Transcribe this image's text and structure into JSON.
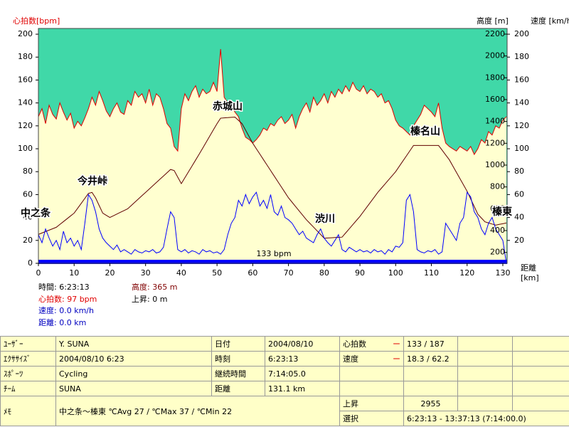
{
  "chart_data": {
    "type": "line",
    "y_label": "心拍数[bpm]",
    "y2_label": "高度 [m]",
    "y3_label": "速度 [km/h]",
    "x_label": "距離 [km]",
    "background_color": "#40d8a8",
    "xlim": [
      0,
      131.2
    ],
    "xticks": [
      0,
      10,
      20,
      30,
      40,
      50,
      60,
      70,
      80,
      90,
      100,
      110,
      120,
      130
    ],
    "ylim": [
      0,
      205
    ],
    "yticks": [
      0,
      20,
      40,
      60,
      80,
      100,
      120,
      140,
      160,
      180,
      200
    ],
    "y2lim": [
      100,
      2252
    ],
    "y2ticks": [
      200,
      400,
      600,
      800,
      1000,
      1200,
      1400,
      1600,
      1800,
      2000,
      2200
    ],
    "y3lim": [
      0,
      205
    ],
    "y3ticks": [
      20,
      40,
      60,
      80,
      100,
      120,
      140,
      160,
      180,
      200
    ],
    "x": [
      0,
      1,
      2,
      3,
      4,
      5,
      6,
      7,
      8,
      9,
      10,
      11,
      12,
      13,
      14,
      15,
      16,
      17,
      18,
      19,
      20,
      21,
      22,
      23,
      24,
      25,
      26,
      27,
      28,
      29,
      30,
      31,
      32,
      33,
      34,
      35,
      36,
      37,
      38,
      39,
      40,
      41,
      42,
      43,
      44,
      45,
      46,
      47,
      48,
      49,
      50,
      51,
      52,
      53,
      54,
      55,
      56,
      57,
      58,
      59,
      60,
      61,
      62,
      63,
      64,
      65,
      66,
      67,
      68,
      69,
      70,
      71,
      72,
      73,
      74,
      75,
      76,
      77,
      78,
      79,
      80,
      81,
      82,
      83,
      84,
      85,
      86,
      87,
      88,
      89,
      90,
      91,
      92,
      93,
      94,
      95,
      96,
      97,
      98,
      99,
      100,
      101,
      102,
      103,
      104,
      105,
      106,
      107,
      108,
      109,
      110,
      111,
      112,
      113,
      114,
      115,
      116,
      117,
      118,
      119,
      120,
      121,
      122,
      123,
      124,
      125,
      126,
      127,
      128,
      129,
      130,
      131
    ],
    "series": [
      {
        "name": "心拍数",
        "color": "#e00000",
        "fill": "#ffffd0",
        "axis": "y",
        "values": [
          128,
          135,
          122,
          138,
          130,
          126,
          140,
          132,
          125,
          131,
          118,
          124,
          120,
          127,
          135,
          145,
          138,
          150,
          142,
          133,
          128,
          135,
          140,
          132,
          130,
          142,
          138,
          150,
          145,
          148,
          140,
          152,
          138,
          148,
          145,
          135,
          122,
          118,
          102,
          98,
          135,
          148,
          142,
          150,
          155,
          145,
          152,
          148,
          150,
          158,
          150,
          187,
          145,
          140,
          138,
          132,
          128,
          118,
          110,
          108,
          105,
          108,
          112,
          118,
          116,
          122,
          120,
          125,
          128,
          122,
          125,
          130,
          118,
          128,
          135,
          140,
          132,
          145,
          138,
          142,
          148,
          140,
          150,
          145,
          152,
          148,
          155,
          150,
          158,
          152,
          150,
          155,
          148,
          152,
          150,
          145,
          148,
          140,
          142,
          135,
          125,
          120,
          118,
          115,
          112,
          120,
          125,
          130,
          138,
          135,
          132,
          128,
          140,
          118,
          105,
          102,
          100,
          98,
          102,
          100,
          98,
          102,
          95,
          100,
          108,
          105,
          115,
          112,
          120,
          118,
          125,
          128
        ]
      },
      {
        "name": "高度",
        "color": "#600000",
        "axis": "y2",
        "values": [
          365,
          378,
          391,
          404,
          417,
          430,
          456,
          482,
          508,
          534,
          560,
          605,
          650,
          695,
          740,
          750,
          700,
          630,
          560,
          540,
          520,
          536,
          552,
          568,
          584,
          600,
          630,
          660,
          690,
          720,
          750,
          780,
          810,
          840,
          870,
          900,
          930,
          960,
          950,
          890,
          830,
          884,
          938,
          992,
          1046,
          1100,
          1156,
          1212,
          1268,
          1324,
          1380,
          1430,
          1433,
          1435,
          1438,
          1440,
          1410,
          1380,
          1320,
          1260,
          1200,
          1150,
          1100,
          1050,
          1000,
          950,
          900,
          850,
          800,
          750,
          700,
          660,
          620,
          580,
          540,
          500,
          466,
          432,
          398,
          364,
          330,
          332,
          334,
          336,
          338,
          340,
          378,
          416,
          454,
          492,
          530,
          574,
          618,
          662,
          706,
          750,
          788,
          826,
          864,
          902,
          940,
          988,
          1036,
          1084,
          1132,
          1180,
          1180,
          1180,
          1180,
          1180,
          1180,
          1180,
          1180,
          1137,
          1093,
          1050,
          992,
          934,
          876,
          818,
          760,
          690,
          620,
          550,
          515,
          480,
          470,
          460,
          450,
          457,
          463,
          470
        ]
      },
      {
        "name": "速度",
        "color": "#0000ff",
        "axis": "y3",
        "values": [
          25,
          18,
          30,
          22,
          15,
          20,
          12,
          28,
          18,
          22,
          15,
          20,
          12,
          35,
          60,
          55,
          45,
          30,
          22,
          18,
          15,
          12,
          16,
          10,
          12,
          10,
          8,
          12,
          10,
          9,
          11,
          10,
          12,
          9,
          10,
          14,
          30,
          45,
          40,
          12,
          10,
          12,
          9,
          11,
          10,
          8,
          12,
          10,
          11,
          9,
          10,
          8,
          12,
          25,
          35,
          40,
          55,
          50,
          60,
          52,
          58,
          62,
          50,
          55,
          48,
          60,
          45,
          42,
          50,
          40,
          38,
          35,
          30,
          25,
          28,
          22,
          20,
          18,
          25,
          30,
          22,
          18,
          15,
          20,
          25,
          12,
          10,
          14,
          12,
          10,
          12,
          10,
          11,
          9,
          12,
          10,
          11,
          8,
          12,
          10,
          15,
          14,
          18,
          55,
          60,
          45,
          12,
          10,
          9,
          11,
          10,
          12,
          8,
          10,
          35,
          30,
          25,
          20,
          35,
          40,
          62,
          58,
          45,
          40,
          30,
          25,
          35,
          40,
          30,
          25,
          20,
          0
        ]
      }
    ],
    "avg_label": "133 bpm",
    "annotations": [
      "中之条",
      "今井峠",
      "赤城山",
      "渋川",
      "榛名山",
      "榛東"
    ]
  },
  "cursor_info": [
    "時間: 6:23:13",
    "心拍数: 97 bpm",
    "速度: 0.0 km/h",
    "距離: 0.0 km",
    "高度: 365 m",
    "上昇: 0 m"
  ],
  "table": {
    "rows": [
      [
        "ﾕｰｻﾞｰ",
        "Y. SUNA",
        "日付",
        "2004/08/10",
        "心拍数",
        "ー",
        "133 / 187"
      ],
      [
        "ｴｸｻｻｲｽﾞ",
        "2004/08/10 6:23",
        "時刻",
        "6:23:13",
        "速度",
        "ー",
        "18.3 / 62.2"
      ],
      [
        "ｽﾎﾟｰﾂ",
        "Cycling",
        "継続時間",
        "7:14:05.0"
      ],
      [
        "ﾁｰﾑ",
        "SUNA",
        "距離",
        "131.1 km"
      ],
      [
        "ﾒﾓ",
        "中之条〜榛東 ℃Avg 27 / ℃Max 37 / ℃Min 22",
        "上昇",
        "2955"
      ],
      [
        "選択",
        "6:23:13 - 13:37:13 (7:14:00.0)"
      ]
    ]
  }
}
